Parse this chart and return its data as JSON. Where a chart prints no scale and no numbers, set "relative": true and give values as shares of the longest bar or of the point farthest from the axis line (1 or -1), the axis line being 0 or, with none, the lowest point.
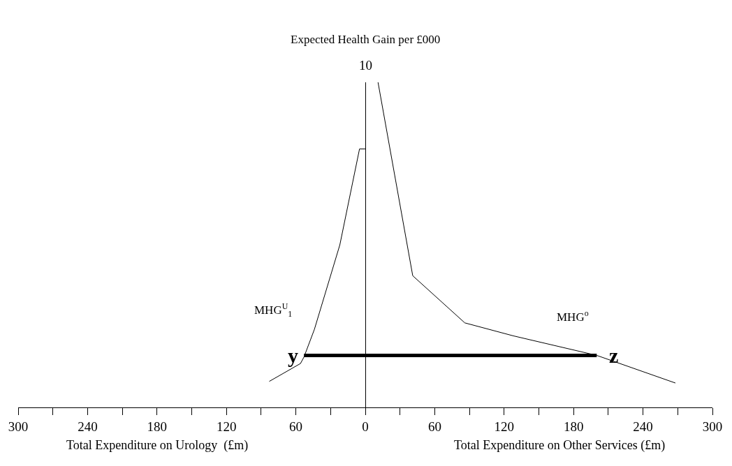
{
  "chart_data": {
    "type": "line",
    "ylabel": "Expected Health Gain per £000",
    "xlim": [
      -300,
      300
    ],
    "xticks": [
      {
        "value": -300,
        "label": "300"
      },
      {
        "value": -270,
        "label": null
      },
      {
        "value": -240,
        "label": "240"
      },
      {
        "value": -210,
        "label": null
      },
      {
        "value": -180,
        "label": "180"
      },
      {
        "value": -150,
        "label": null
      },
      {
        "value": -120,
        "label": "120"
      },
      {
        "value": -90,
        "label": null
      },
      {
        "value": -60,
        "label": "60"
      },
      {
        "value": -30,
        "label": null
      },
      {
        "value": 0,
        "label": "0"
      },
      {
        "value": 30,
        "label": null
      },
      {
        "value": 60,
        "label": "60"
      },
      {
        "value": 90,
        "label": null
      },
      {
        "value": 120,
        "label": "120"
      },
      {
        "value": 150,
        "label": null
      },
      {
        "value": 180,
        "label": "180"
      },
      {
        "value": 210,
        "label": null
      },
      {
        "value": 240,
        "label": "240"
      },
      {
        "value": 270,
        "label": null
      },
      {
        "value": 300,
        "label": "300"
      }
    ],
    "relative": true,
    "grid": false,
    "legend": false,
    "marker": "none",
    "line_style": "solid",
    "series": [
      {
        "name": "MHG$^{U}$$_{1}$",
        "color": "#000000",
        "x": [
          -83,
          -56,
          -53,
          -44,
          -22,
          -5,
          0
        ],
        "values": [
          0.08,
          0.135,
          0.155,
          0.24,
          0.5,
          0.795,
          0.795
        ]
      },
      {
        "name": "MHG$^{o}$",
        "color": "#000000",
        "x": [
          11,
          41,
          86,
          128,
          200,
          268
        ],
        "values": [
          1,
          0.405,
          0.26,
          0.22,
          0.16,
          0.075
        ]
      },
      {
        "color": "#000000",
        "x": [
          -53,
          200
        ],
        "values": [
          0.16,
          0.16
        ]
      }
    ],
    "annotations": [
      "Total Expenditure on Urology  (£m)",
      "Total Expenditure on Other Services (£m)",
      "10",
      {
        "text": "y",
        "x": -53,
        "y": 0.16
      },
      {
        "text": "z",
        "x": 200,
        "y": 0.16
      }
    ]
  }
}
